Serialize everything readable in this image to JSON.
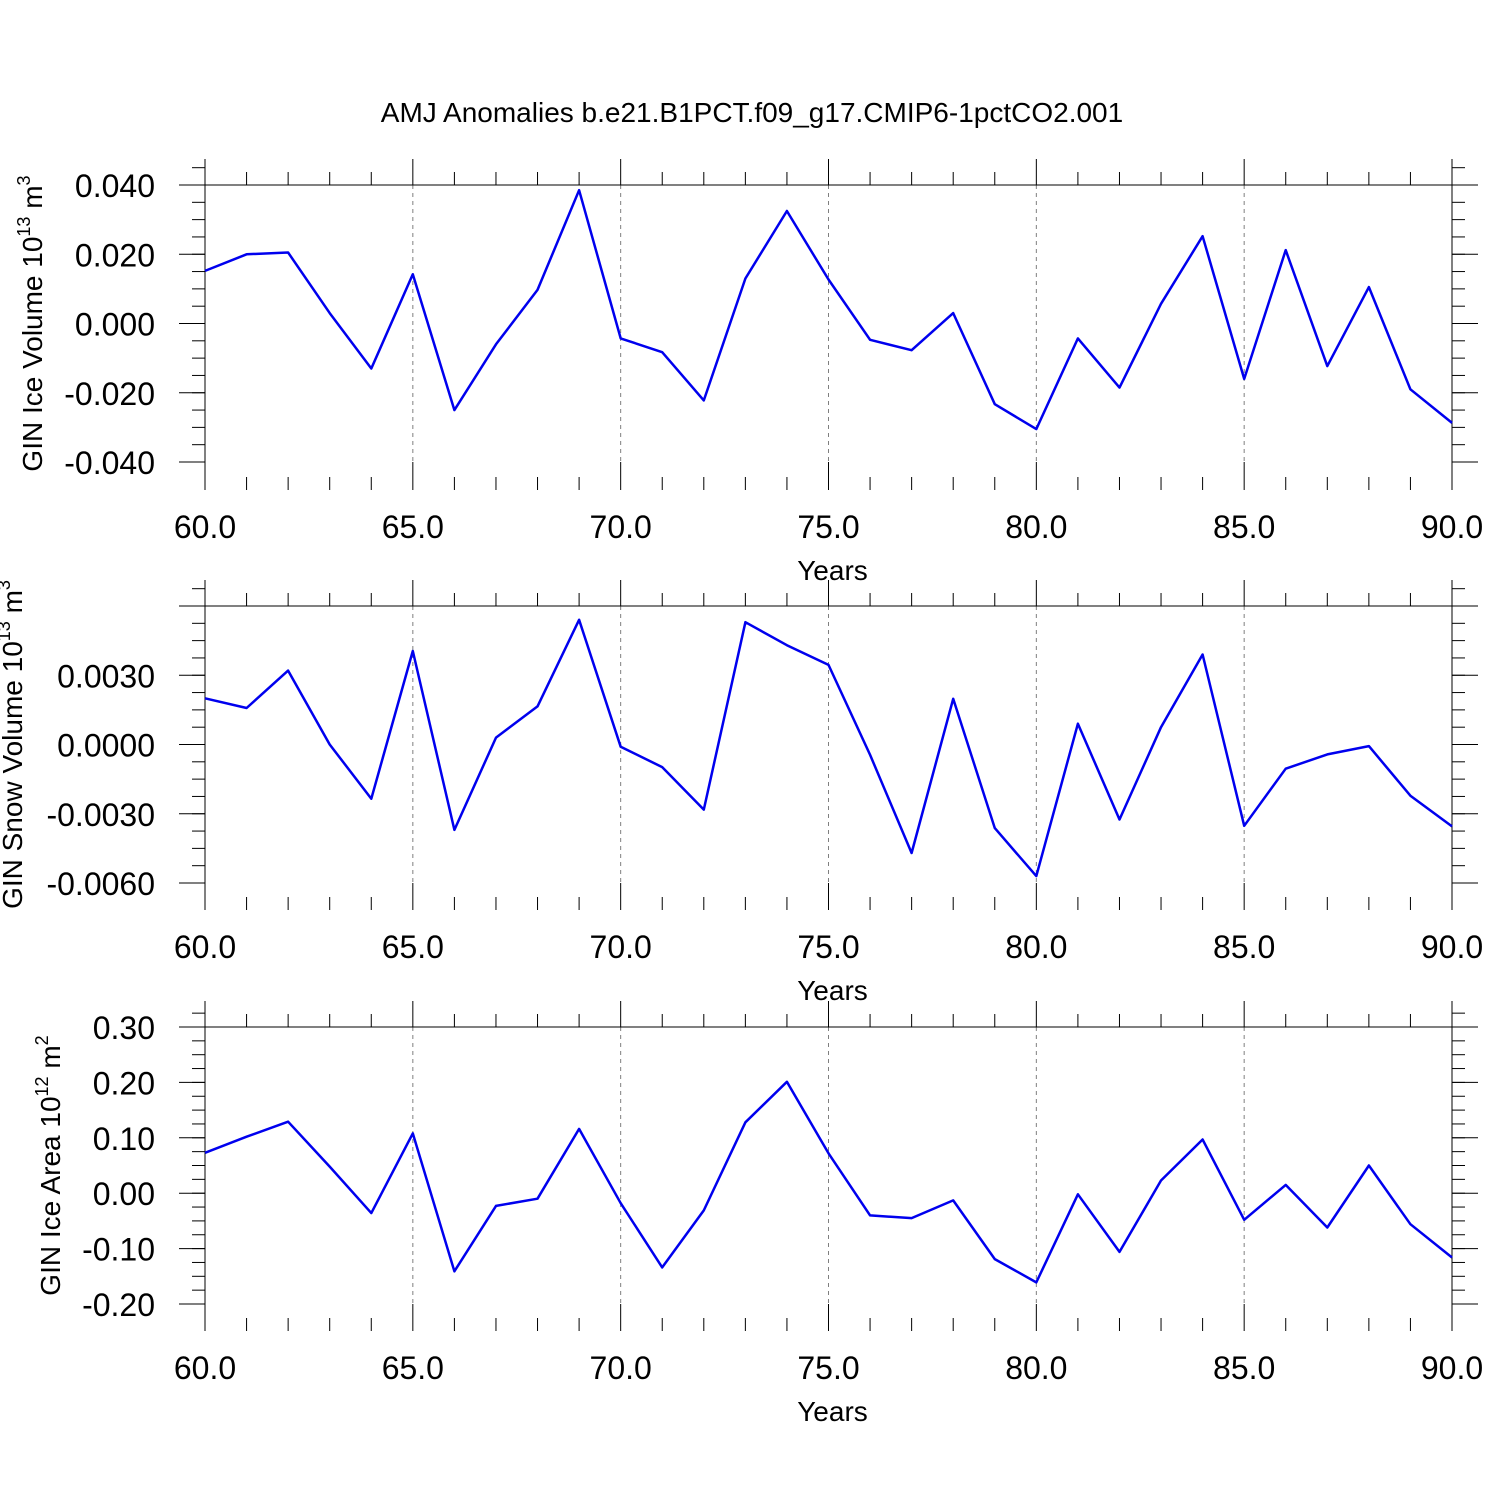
{
  "figure_title": "AMJ Anomalies b.e21.B1PCT.f09_g17.CMIP6-1pctCO2.001",
  "colors": {
    "line": "#0000ee",
    "axis": "#000000",
    "grid": "#7f7f7f"
  },
  "chart_data": [
    {
      "type": "line",
      "ylabel": "GIN Ice Volume 10",
      "ylabel_exp": "13",
      "ylabel_unit": "m",
      "ylabel_unit_exp": "3",
      "xlabel": "Years",
      "xlim": [
        60,
        90
      ],
      "ylim": [
        -0.04,
        0.04
      ],
      "yticks": [
        -0.04,
        -0.02,
        0.0,
        0.02,
        0.04
      ],
      "ytick_labels": [
        "-0.040",
        "-0.020",
        "0.000",
        "0.020",
        "0.040"
      ],
      "xticks": [
        60,
        65,
        70,
        75,
        80,
        85,
        90
      ],
      "xtick_labels": [
        "60.0",
        "65.0",
        "70.0",
        "75.0",
        "80.0",
        "85.0",
        "90.0"
      ],
      "grid": "dashed vertical at major x ticks",
      "x": [
        60,
        61,
        62,
        63,
        64,
        65,
        66,
        67,
        68,
        69,
        70,
        71,
        72,
        73,
        74,
        75,
        76,
        77,
        78,
        79,
        80,
        81,
        82,
        83,
        84,
        85,
        86,
        87,
        88,
        89,
        90
      ],
      "y": [
        0.0152,
        0.02,
        0.0205,
        0.003,
        -0.013,
        0.0142,
        -0.025,
        -0.006,
        0.0097,
        0.0385,
        -0.0043,
        -0.0083,
        -0.0222,
        0.013,
        0.0325,
        0.0127,
        -0.0047,
        -0.0077,
        0.003,
        -0.0233,
        -0.0305,
        -0.0043,
        -0.0185,
        0.0057,
        0.0252,
        -0.016,
        0.0212,
        -0.0123,
        0.0105,
        -0.019,
        -0.0287
      ]
    },
    {
      "type": "line",
      "ylabel": "GIN Snow Volume 10",
      "ylabel_exp": "13",
      "ylabel_unit": "m",
      "ylabel_unit_exp": "3",
      "xlabel": "Years",
      "xlim": [
        60,
        90
      ],
      "ylim": [
        -0.006,
        0.006
      ],
      "yticks": [
        -0.006,
        -0.003,
        0.0,
        0.003
      ],
      "ytick_labels": [
        "-0.0060",
        "-0.0030",
        "0.0000",
        "0.0030"
      ],
      "xticks": [
        60,
        65,
        70,
        75,
        80,
        85,
        90
      ],
      "xtick_labels": [
        "60.0",
        "65.0",
        "70.0",
        "75.0",
        "80.0",
        "85.0",
        "90.0"
      ],
      "grid": "dashed vertical at major x ticks",
      "x": [
        60,
        61,
        62,
        63,
        64,
        65,
        66,
        67,
        68,
        69,
        70,
        71,
        72,
        73,
        74,
        75,
        76,
        77,
        78,
        79,
        80,
        81,
        82,
        83,
        84,
        85,
        86,
        87,
        88,
        89,
        90
      ],
      "y": [
        0.002,
        0.00158,
        0.0032,
        0.0,
        -0.00235,
        0.00405,
        -0.0037,
        0.0003,
        0.00165,
        0.0054,
        -0.0001,
        -0.00098,
        -0.00282,
        0.0053,
        0.0043,
        0.00345,
        -0.00045,
        -0.0047,
        0.00198,
        -0.00362,
        -0.0057,
        0.0009,
        -0.00325,
        0.00075,
        0.0039,
        -0.00352,
        -0.00105,
        -0.00043,
        -7e-05,
        -0.00222,
        -0.00355
      ]
    },
    {
      "type": "line",
      "ylabel": "GIN Ice Area 10",
      "ylabel_exp": "12",
      "ylabel_unit": "m",
      "ylabel_unit_exp": "2",
      "xlabel": "Years",
      "xlim": [
        60,
        90
      ],
      "ylim": [
        -0.2,
        0.3
      ],
      "yticks": [
        -0.2,
        -0.1,
        0.0,
        0.1,
        0.2,
        0.3
      ],
      "ytick_labels": [
        "-0.20",
        "-0.10",
        "0.00",
        "0.10",
        "0.20",
        "0.30"
      ],
      "xticks": [
        60,
        65,
        70,
        75,
        80,
        85,
        90
      ],
      "xtick_labels": [
        "60.0",
        "65.0",
        "70.0",
        "75.0",
        "80.0",
        "85.0",
        "90.0"
      ],
      "grid": "dashed vertical at major x ticks",
      "x": [
        60,
        61,
        62,
        63,
        64,
        65,
        66,
        67,
        68,
        69,
        70,
        71,
        72,
        73,
        74,
        75,
        76,
        77,
        78,
        79,
        80,
        81,
        82,
        83,
        84,
        85,
        86,
        87,
        88,
        89,
        90
      ],
      "y": [
        0.073,
        0.102,
        0.129,
        0.048,
        -0.036,
        0.108,
        -0.141,
        -0.023,
        -0.01,
        0.116,
        -0.018,
        -0.134,
        -0.031,
        0.128,
        0.201,
        0.072,
        -0.04,
        -0.045,
        -0.013,
        -0.119,
        -0.161,
        -0.002,
        -0.106,
        0.023,
        0.097,
        -0.048,
        0.015,
        -0.062,
        0.05,
        -0.056,
        -0.116
      ]
    }
  ]
}
